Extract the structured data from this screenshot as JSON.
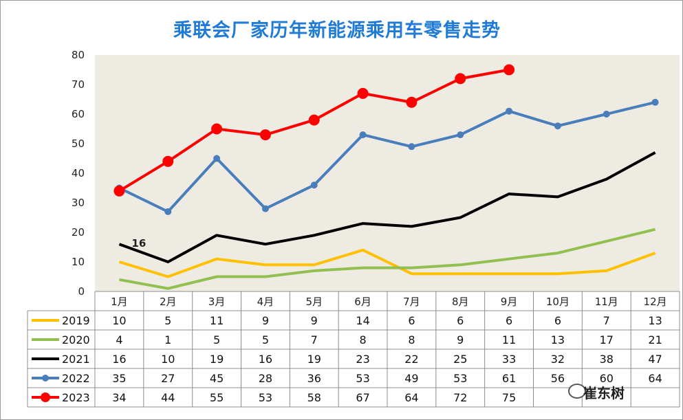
{
  "chart_data": {
    "type": "line",
    "title": "乘联会厂家历年新能源乘用车零售走势",
    "ylim": [
      0,
      80
    ],
    "yticks": [
      0,
      10,
      20,
      30,
      40,
      50,
      60,
      70,
      80
    ],
    "categories": [
      "1月",
      "2月",
      "3月",
      "4月",
      "5月",
      "6月",
      "7月",
      "8月",
      "9月",
      "10月",
      "11月",
      "12月"
    ],
    "grid": "none",
    "legend_placement": "data-table",
    "series": [
      {
        "name": "2019",
        "color": "#ffc000",
        "marker": false,
        "values": [
          10,
          5,
          11,
          9,
          9,
          14,
          6,
          6,
          6,
          6,
          7,
          13
        ],
        "table": [
          "10",
          "5",
          "11",
          "9",
          "9",
          "14",
          "6",
          "6",
          "6",
          "6",
          "7",
          "13"
        ]
      },
      {
        "name": "2020",
        "color": "#92c050",
        "marker": false,
        "values": [
          4,
          1,
          5,
          5,
          7,
          8,
          8,
          9,
          11,
          13,
          17,
          21
        ],
        "table": [
          "4",
          "1",
          "5",
          "5",
          "7",
          "8",
          "8",
          "9",
          "11",
          "13",
          "17",
          "21"
        ]
      },
      {
        "name": "2021",
        "color": "#000000",
        "marker": false,
        "values": [
          16,
          10,
          19,
          16,
          19,
          23,
          22,
          25,
          33,
          32,
          38,
          47
        ],
        "table": [
          "16",
          "10",
          "19",
          "16",
          "19",
          "23",
          "22",
          "25",
          "33",
          "32",
          "38",
          "47"
        ]
      },
      {
        "name": "2022",
        "color": "#4a7ebb",
        "marker": true,
        "values": [
          35,
          27,
          45,
          28,
          36,
          53,
          49,
          53,
          61,
          56,
          60,
          64
        ],
        "table": [
          "35",
          "27",
          "45",
          "28",
          "36",
          "53",
          "49",
          "53",
          "61",
          "56",
          "60",
          "64"
        ]
      },
      {
        "name": "2023",
        "color": "#ff0000",
        "marker": true,
        "values": [
          34,
          44,
          55,
          53,
          58,
          67,
          64,
          72,
          75,
          null,
          null,
          null
        ],
        "table": [
          "34",
          "44",
          "55",
          "53",
          "58",
          "67",
          "64",
          "72",
          "75",
          "",
          "",
          ""
        ]
      }
    ],
    "annotations": [
      {
        "series": "2021",
        "category": "1月",
        "text": "16"
      }
    ]
  },
  "watermark": "崔东树",
  "colors": {
    "plot_background": "#edebe2",
    "title": "#1f7bd6"
  }
}
